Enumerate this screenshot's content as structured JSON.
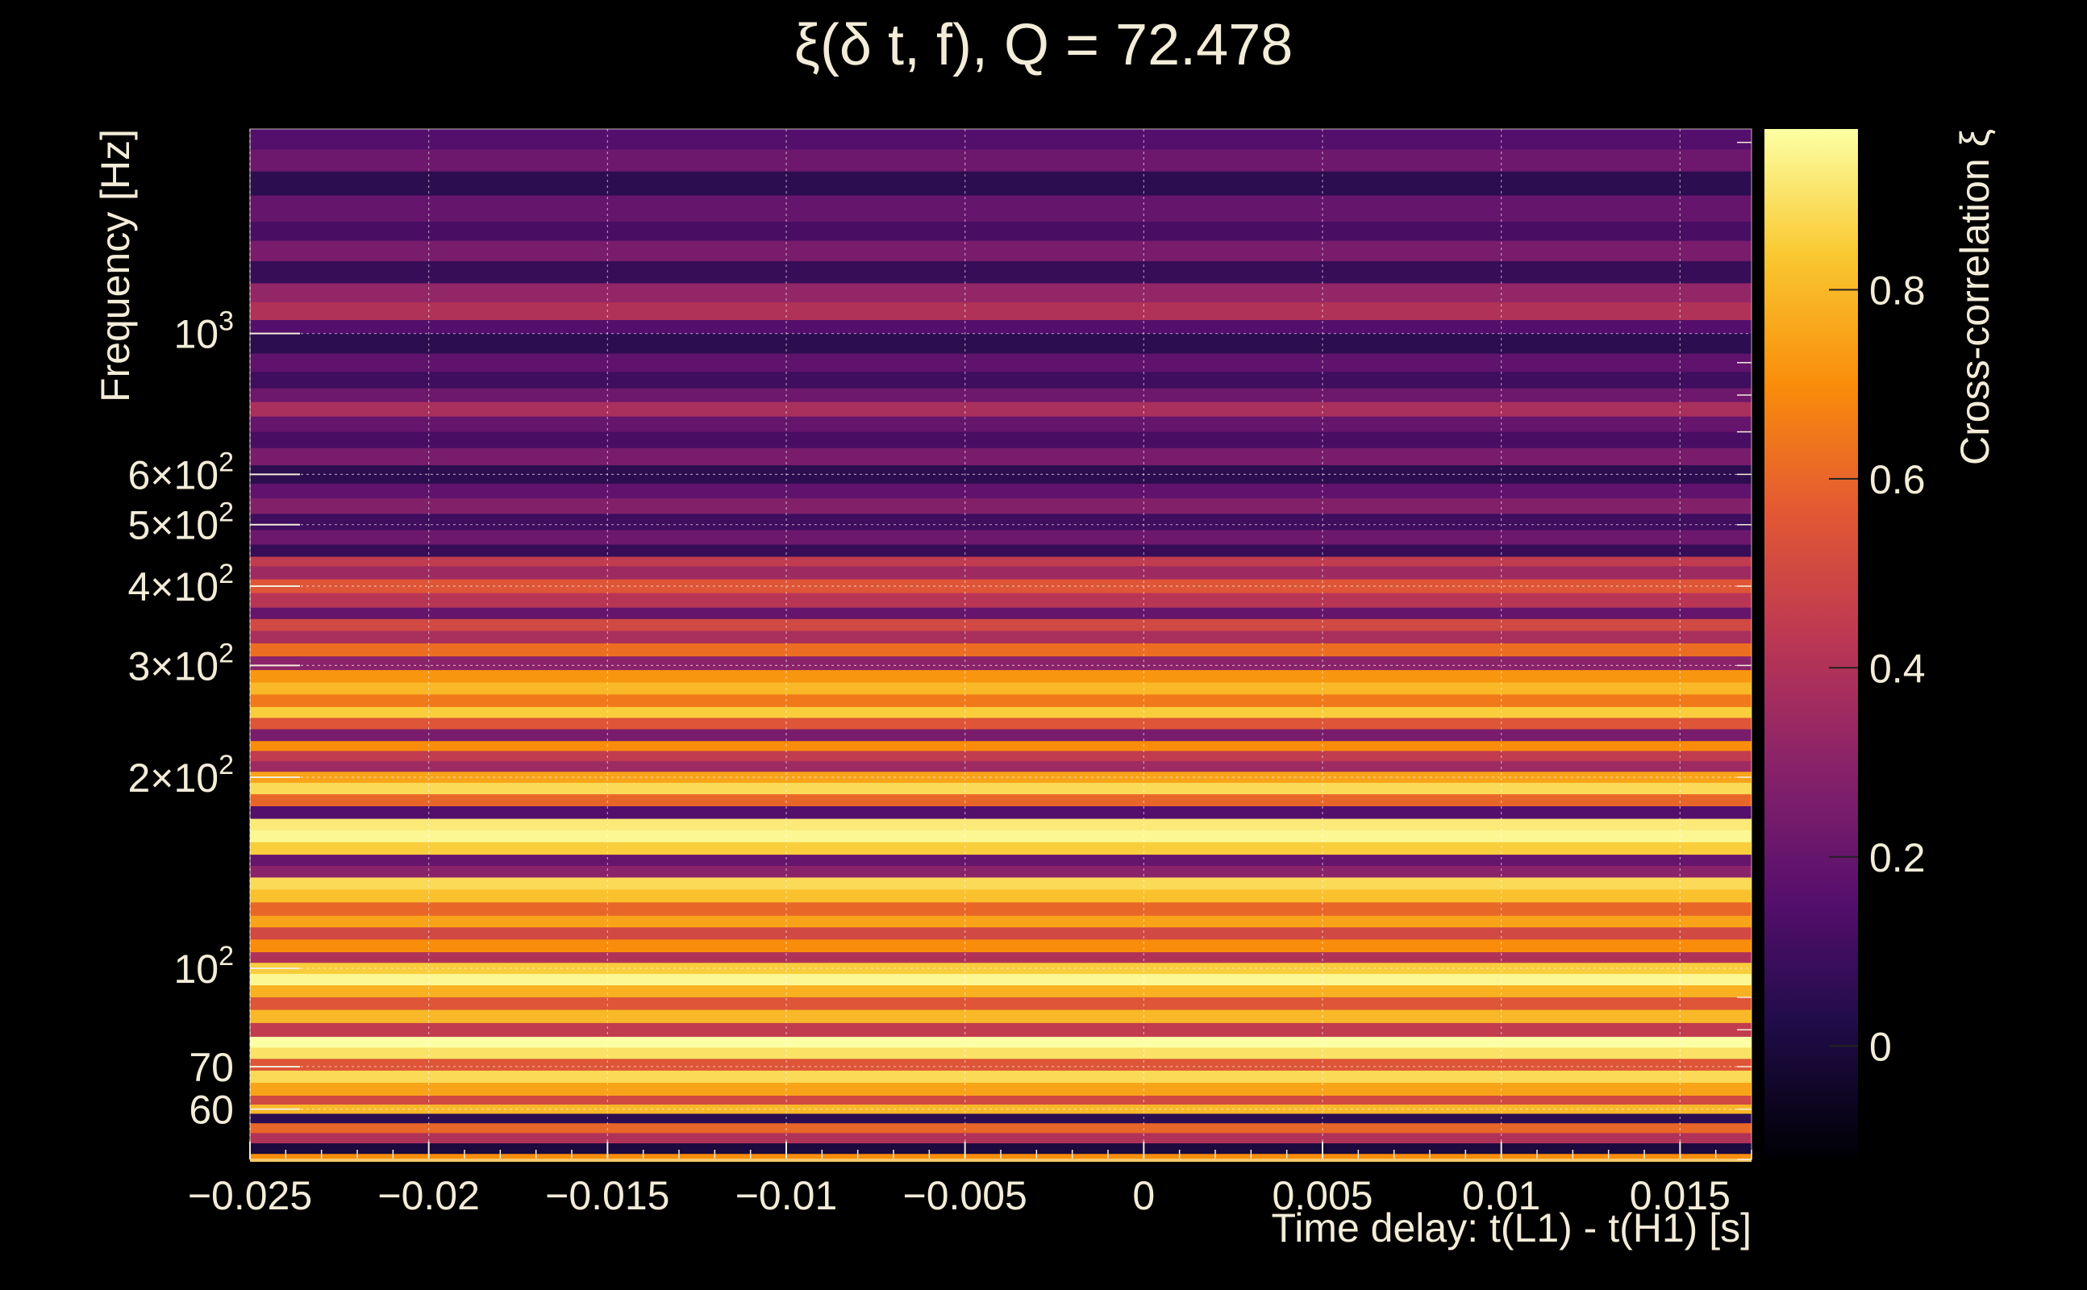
{
  "chart_data": {
    "type": "heatmap",
    "title": "ξ(δ t, f), Q = 72.478",
    "xlabel": "Time delay: t(L1) - t(H1) [s]",
    "ylabel": "Frequency [Hz]",
    "colorbar_label": "Cross-correlation ξ",
    "colormap": "inferno",
    "xlim": [
      -0.025,
      0.017
    ],
    "ylim": [
      50,
      2100
    ],
    "yscale": "log",
    "clim": [
      -0.12,
      0.97
    ],
    "grid": true,
    "x_ticks": [
      -0.025,
      -0.02,
      -0.015,
      -0.01,
      -0.005,
      0,
      0.005,
      0.01,
      0.015
    ],
    "x_tick_labels": [
      "−0.025",
      "−0.02",
      "−0.015",
      "−0.01",
      "−0.005",
      "0",
      "0.005",
      "0.01",
      "0.015"
    ],
    "y_ticks": [
      {
        "value": 1000,
        "base": "10",
        "exp": "3"
      },
      {
        "value": 600,
        "base": "6×10",
        "exp": "2"
      },
      {
        "value": 500,
        "base": "5×10",
        "exp": "2"
      },
      {
        "value": 400,
        "base": "4×10",
        "exp": "2"
      },
      {
        "value": 300,
        "base": "3×10",
        "exp": "2"
      },
      {
        "value": 200,
        "base": "2×10",
        "exp": "2"
      },
      {
        "value": 100,
        "base": "10",
        "exp": "2"
      },
      {
        "value": 70,
        "base": "70",
        "exp": ""
      },
      {
        "value": 60,
        "base": "60",
        "exp": ""
      }
    ],
    "colorbar_ticks": [
      0,
      0.2,
      0.4,
      0.6,
      0.8
    ],
    "colorbar_tick_labels": [
      "0",
      "0.2",
      "0.4",
      "0.6",
      "0.8"
    ],
    "band_profile": [
      {
        "f": 2100,
        "v": 0.15
      },
      {
        "f": 1950,
        "v": 0.22
      },
      {
        "f": 1800,
        "v": 0.05
      },
      {
        "f": 1650,
        "v": 0.2
      },
      {
        "f": 1500,
        "v": 0.12
      },
      {
        "f": 1400,
        "v": 0.25
      },
      {
        "f": 1300,
        "v": 0.08
      },
      {
        "f": 1200,
        "v": 0.32
      },
      {
        "f": 1120,
        "v": 0.4
      },
      {
        "f": 1050,
        "v": 0.15
      },
      {
        "f": 1000,
        "v": 0.05
      },
      {
        "f": 930,
        "v": 0.18
      },
      {
        "f": 870,
        "v": 0.1
      },
      {
        "f": 820,
        "v": 0.22
      },
      {
        "f": 780,
        "v": 0.38
      },
      {
        "f": 740,
        "v": 0.2
      },
      {
        "f": 700,
        "v": 0.12
      },
      {
        "f": 660,
        "v": 0.25
      },
      {
        "f": 620,
        "v": 0.05
      },
      {
        "f": 580,
        "v": 0.18
      },
      {
        "f": 550,
        "v": 0.28
      },
      {
        "f": 520,
        "v": 0.1
      },
      {
        "f": 490,
        "v": 0.22
      },
      {
        "f": 465,
        "v": 0.08
      },
      {
        "f": 445,
        "v": 0.45
      },
      {
        "f": 430,
        "v": 0.35
      },
      {
        "f": 410,
        "v": 0.55
      },
      {
        "f": 390,
        "v": 0.42
      },
      {
        "f": 370,
        "v": 0.2
      },
      {
        "f": 355,
        "v": 0.5
      },
      {
        "f": 340,
        "v": 0.38
      },
      {
        "f": 325,
        "v": 0.62
      },
      {
        "f": 310,
        "v": 0.3
      },
      {
        "f": 295,
        "v": 0.72
      },
      {
        "f": 282,
        "v": 0.8
      },
      {
        "f": 270,
        "v": 0.65
      },
      {
        "f": 258,
        "v": 0.85
      },
      {
        "f": 248,
        "v": 0.55
      },
      {
        "f": 238,
        "v": 0.25
      },
      {
        "f": 228,
        "v": 0.7
      },
      {
        "f": 220,
        "v": 0.45
      },
      {
        "f": 212,
        "v": 0.35
      },
      {
        "f": 204,
        "v": 0.75
      },
      {
        "f": 196,
        "v": 0.88
      },
      {
        "f": 188,
        "v": 0.6
      },
      {
        "f": 180,
        "v": 0.15
      },
      {
        "f": 172,
        "v": 0.92
      },
      {
        "f": 165,
        "v": 0.95
      },
      {
        "f": 158,
        "v": 0.85
      },
      {
        "f": 151,
        "v": 0.2
      },
      {
        "f": 145,
        "v": 0.3
      },
      {
        "f": 139,
        "v": 0.88
      },
      {
        "f": 133,
        "v": 0.82
      },
      {
        "f": 127,
        "v": 0.6
      },
      {
        "f": 121,
        "v": 0.75
      },
      {
        "f": 116,
        "v": 0.5
      },
      {
        "f": 111,
        "v": 0.7
      },
      {
        "f": 106,
        "v": 0.4
      },
      {
        "f": 102,
        "v": 0.85
      },
      {
        "f": 98,
        "v": 0.95
      },
      {
        "f": 94,
        "v": 0.78
      },
      {
        "f": 90,
        "v": 0.55
      },
      {
        "f": 86,
        "v": 0.8
      },
      {
        "f": 82,
        "v": 0.45
      },
      {
        "f": 78,
        "v": 0.97
      },
      {
        "f": 75,
        "v": 0.9
      },
      {
        "f": 72,
        "v": 0.55
      },
      {
        "f": 69,
        "v": 0.88
      },
      {
        "f": 66,
        "v": 0.75
      },
      {
        "f": 63,
        "v": 0.5
      },
      {
        "f": 61,
        "v": 0.8
      },
      {
        "f": 59,
        "v": 0.05
      },
      {
        "f": 57,
        "v": 0.6
      },
      {
        "f": 55,
        "v": 0.4
      },
      {
        "f": 53,
        "v": 0.0
      },
      {
        "f": 51,
        "v": 0.7
      }
    ]
  }
}
